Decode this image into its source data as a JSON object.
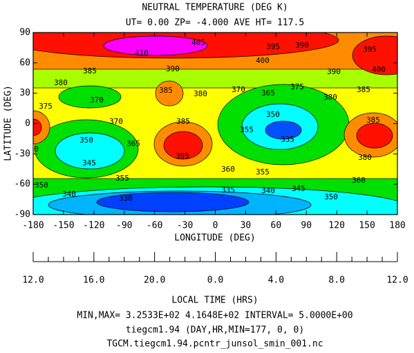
{
  "chart_data": {
    "type": "contour",
    "title": "NEUTRAL TEMPERATURE (DEG K)",
    "subtitle": "UT= 0.00 ZP= -4.000 AVE HT= 117.5",
    "xlabel": "LONGITUDE (DEG)",
    "ylabel": "LATITUDE (DEG)",
    "xlim": [
      -180,
      180
    ],
    "ylim": [
      -90,
      90
    ],
    "xticks": [
      -180,
      -150,
      -120,
      -90,
      -60,
      -30,
      0,
      30,
      60,
      90,
      120,
      150,
      180
    ],
    "yticks": [
      -90,
      -60,
      -30,
      0,
      30,
      60,
      90
    ],
    "x2label": "LOCAL TIME (HRS)",
    "x2_labels": [
      "12.0",
      "16.0",
      "20.0",
      "0.0",
      "4.0",
      "8.0",
      "12.0"
    ],
    "contour_labels": [
      405,
      410,
      395,
      390,
      395,
      400,
      400,
      385,
      390,
      390,
      380,
      370,
      385,
      380,
      370,
      365,
      375,
      380,
      385,
      375,
      370,
      385,
      350,
      335,
      355,
      385,
      360,
      350,
      365,
      345,
      395,
      380,
      360,
      355,
      360,
      355,
      350,
      340,
      335,
      340,
      345,
      350,
      330
    ],
    "footer": [
      "MIN,MAX=  3.2533E+02  4.1648E+02 INTERVAL=  5.0000E+00",
      "tiegcm1.94 (DAY,HR,MIN=177, 0, 0)",
      "TGCM.tiegcm1.94.pcntr_junsol_smin_001.nc"
    ]
  }
}
